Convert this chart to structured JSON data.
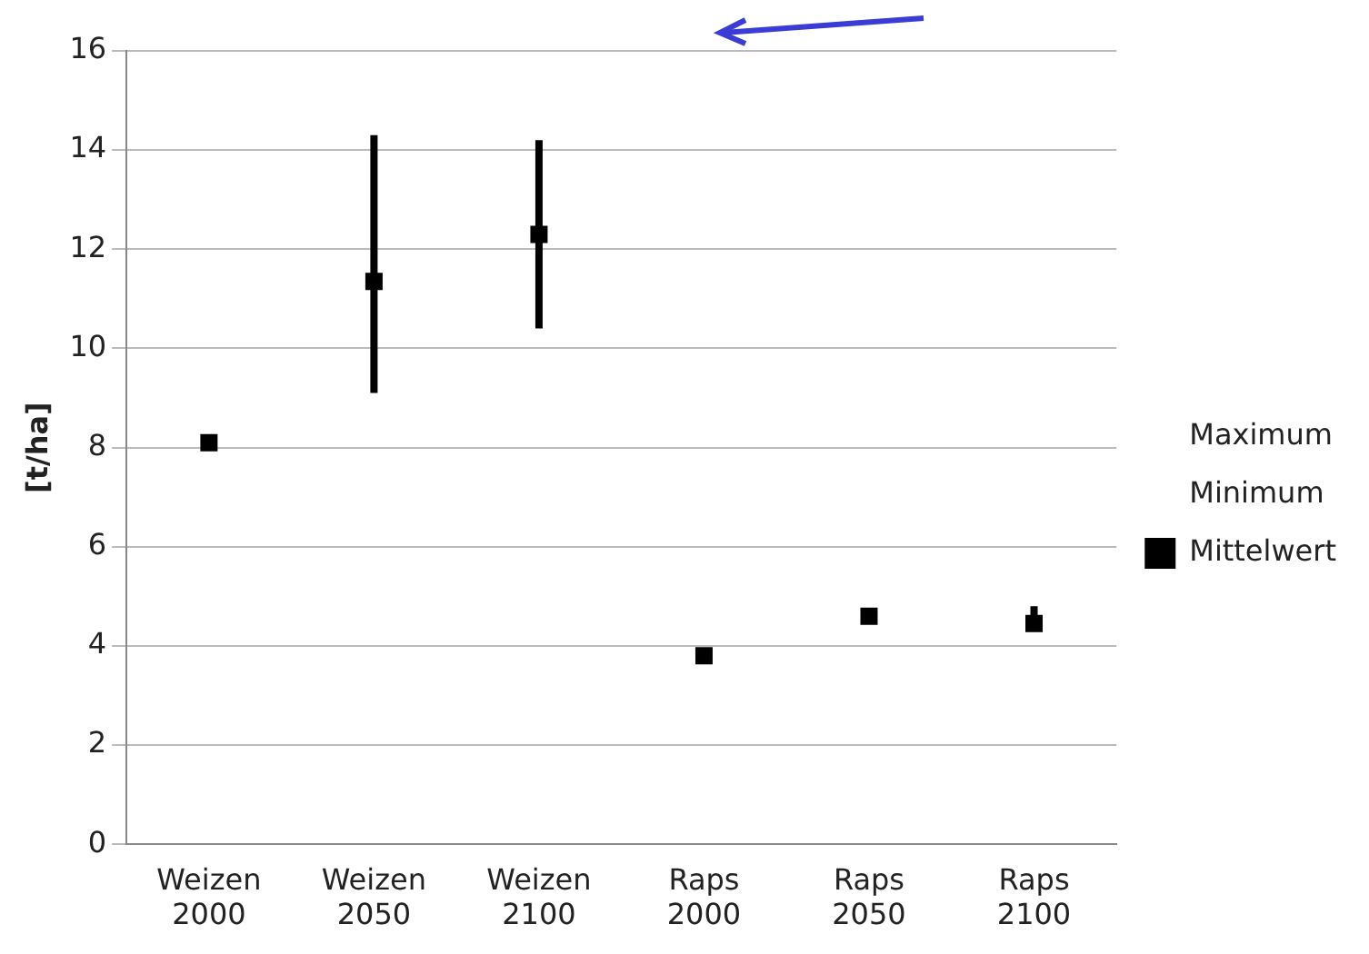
{
  "chart_data": {
    "type": "scatter",
    "ylabel": "[t/ha]",
    "categories": [
      "Weizen 2000",
      "Weizen 2050",
      "Weizen 2100",
      "Raps 2000",
      "Raps 2050",
      "Raps 2100"
    ],
    "series": [
      {
        "name": "Mittelwert",
        "color": "#000000",
        "marker": "square",
        "values": [
          8.1,
          11.35,
          12.3,
          3.8,
          4.6,
          4.45
        ],
        "errors": [
          [
            8.1,
            8.15
          ],
          [
            9.1,
            14.3
          ],
          [
            10.4,
            14.2
          ],
          [
            3.8,
            3.85
          ],
          [
            4.5,
            4.65
          ],
          [
            4.3,
            4.8
          ]
        ]
      }
    ],
    "annotations": [
      "Maximum",
      "Minimum"
    ],
    "ylim": [
      0,
      16
    ],
    "yticks": [
      0,
      2,
      4,
      6,
      8,
      10,
      12,
      14,
      16
    ],
    "grid": "y",
    "legend": "right"
  }
}
